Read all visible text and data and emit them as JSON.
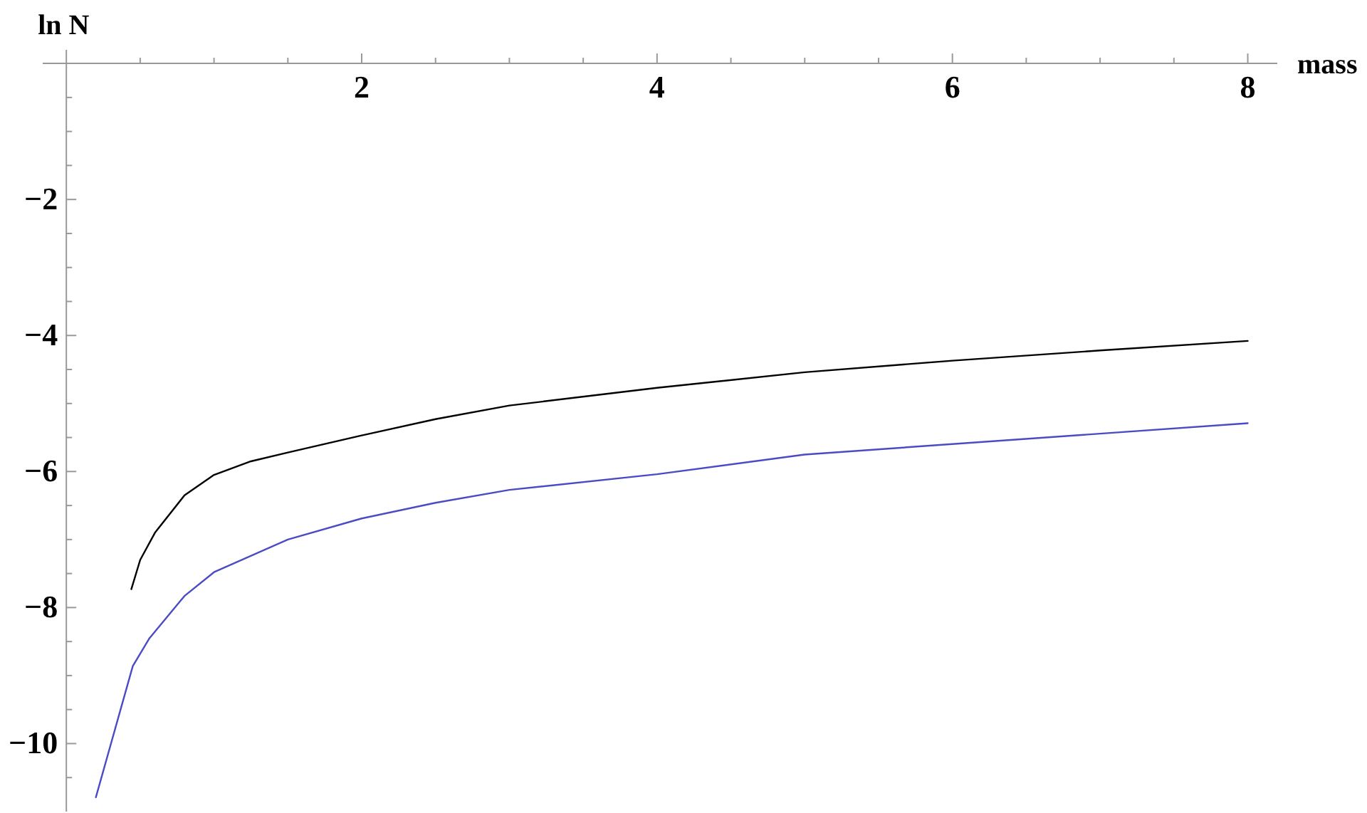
{
  "chart_data": {
    "type": "line",
    "xlabel": "mass",
    "ylabel": "ln N",
    "xlim": [
      -0.16,
      8.2
    ],
    "ylim": [
      -11,
      0.2
    ],
    "xticks": [
      {
        "value": 0.5,
        "label": null
      },
      {
        "value": 1,
        "label": null
      },
      {
        "value": 1.5,
        "label": null
      },
      2,
      {
        "value": 2.5,
        "label": null
      },
      {
        "value": 3,
        "label": null
      },
      {
        "value": 3.5,
        "label": null
      },
      4,
      {
        "value": 4.5,
        "label": null
      },
      {
        "value": 5,
        "label": null
      },
      {
        "value": 5.5,
        "label": null
      },
      6,
      {
        "value": 6.5,
        "label": null
      },
      {
        "value": 7,
        "label": null
      },
      {
        "value": 7.5,
        "label": null
      },
      8
    ],
    "yticks": [
      {
        "value": -10.5,
        "label": null
      },
      {
        "value": -10,
        "label": "−10"
      },
      {
        "value": -9.5,
        "label": null
      },
      {
        "value": -9,
        "label": null
      },
      {
        "value": -8.5,
        "label": null
      },
      {
        "value": -8,
        "label": "−8"
      },
      {
        "value": -7.5,
        "label": null
      },
      {
        "value": -7,
        "label": null
      },
      {
        "value": -6.5,
        "label": null
      },
      {
        "value": -6,
        "label": "−6"
      },
      {
        "value": -5.5,
        "label": null
      },
      {
        "value": -5,
        "label": null
      },
      {
        "value": -4.5,
        "label": null
      },
      {
        "value": -4,
        "label": "−4"
      },
      {
        "value": -3.5,
        "label": null
      },
      {
        "value": -3,
        "label": null
      },
      {
        "value": -2.5,
        "label": null
      },
      {
        "value": -2,
        "label": "−2"
      },
      {
        "value": -1.5,
        "label": null
      },
      {
        "value": -1,
        "label": null
      },
      {
        "value": -0.5,
        "label": null
      }
    ],
    "grid": false,
    "marker": "none",
    "line_style": "solid",
    "series": [
      {
        "color": "#000000",
        "x": [
          0.44,
          0.5,
          0.6,
          0.8,
          1.0,
          1.25,
          1.5,
          2,
          2.5,
          3,
          4,
          5,
          6,
          7,
          8
        ],
        "values": [
          -7.73,
          -7.3,
          -6.9,
          -6.35,
          -6.05,
          -5.85,
          -5.72,
          -5.47,
          -5.23,
          -5.03,
          -4.77,
          -4.54,
          -4.37,
          -4.22,
          -4.08
        ]
      },
      {
        "color": "#4b4bc4",
        "x": [
          0.2,
          0.45,
          0.56,
          0.8,
          1.0,
          1.5,
          2.0,
          2.5,
          3,
          4,
          5,
          8
        ],
        "values": [
          -10.79,
          -8.86,
          -8.46,
          -7.83,
          -7.48,
          -7.0,
          -6.69,
          -6.46,
          -6.27,
          -6.04,
          -5.75,
          -5.29
        ]
      }
    ]
  }
}
